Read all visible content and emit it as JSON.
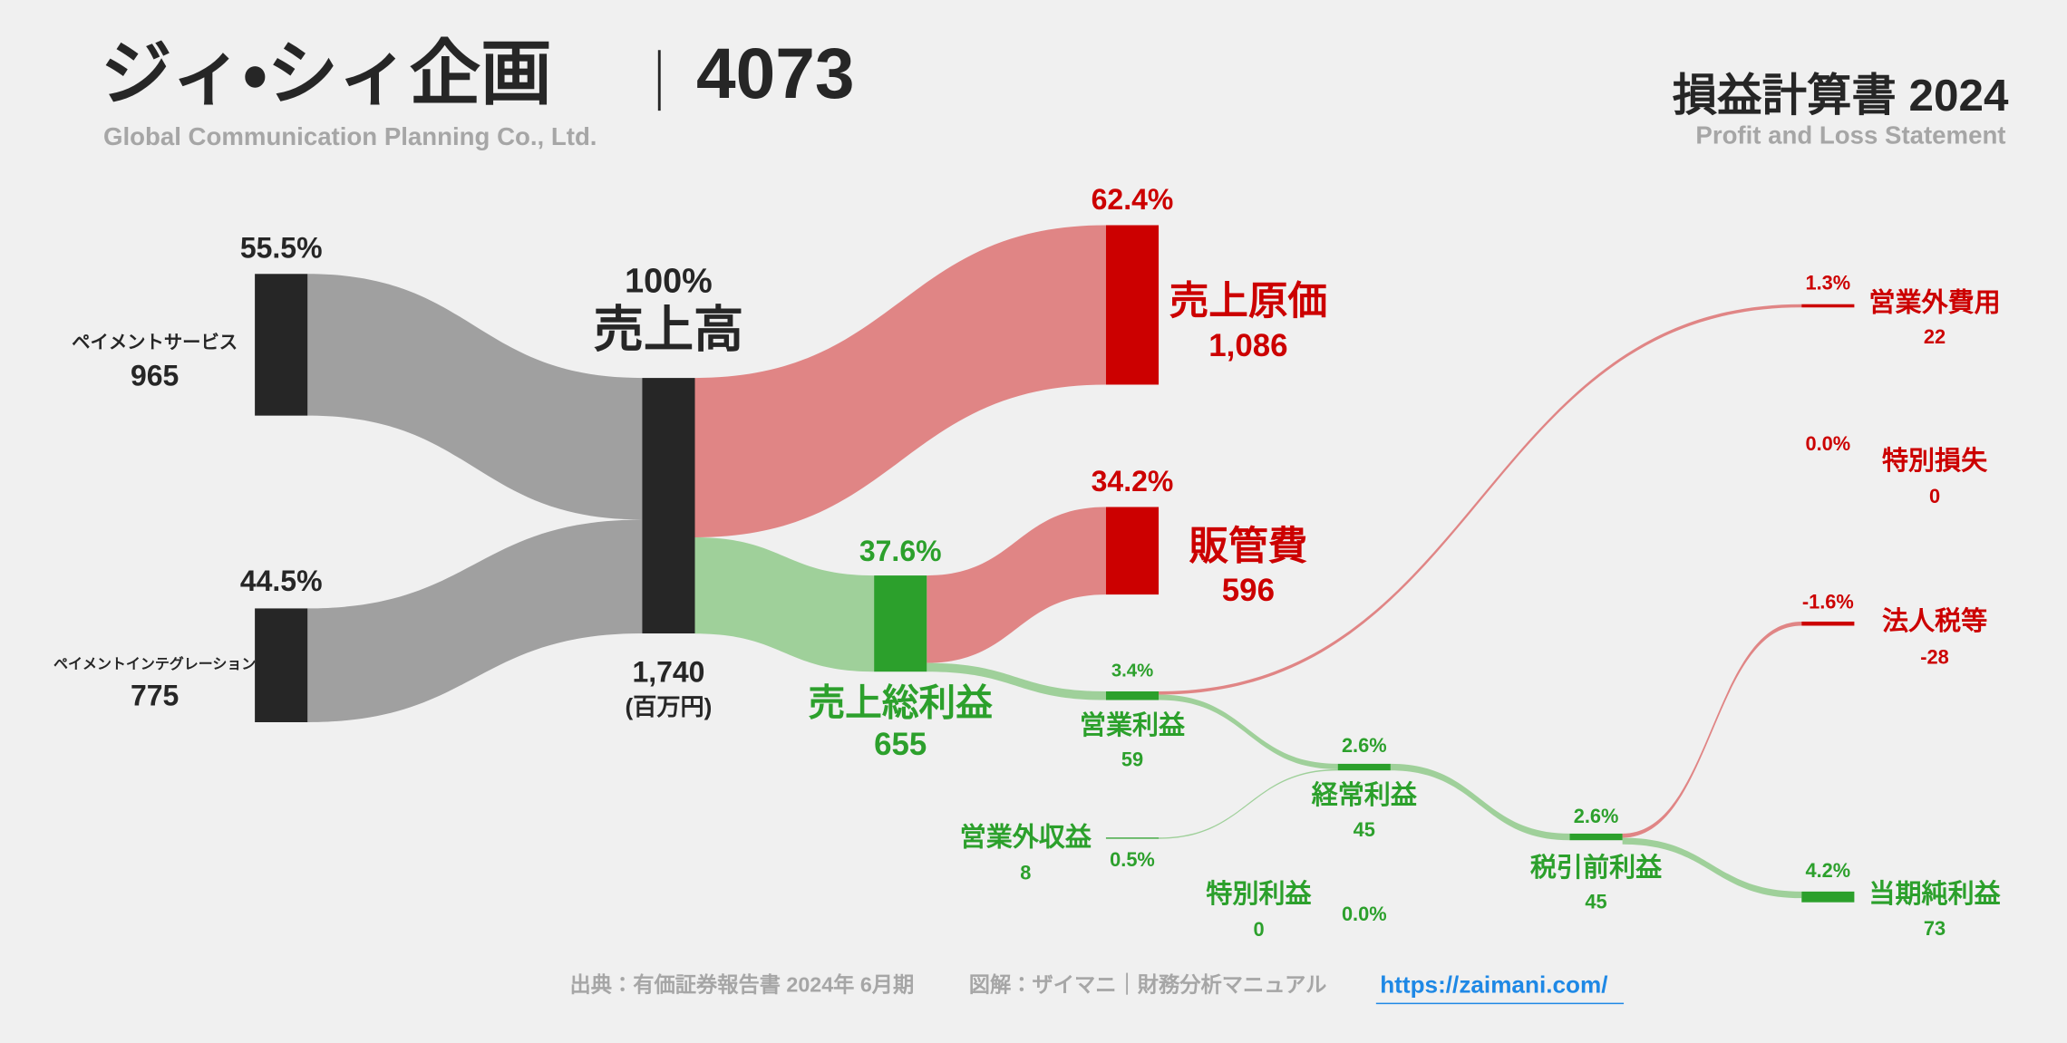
{
  "chart_data": {
    "type": "sankey",
    "title": "ジィ・シィ企画",
    "ticker": "4073",
    "subtitle": "Global Communication Planning Co., Ltd.",
    "statement_title": "損益計算書 2024",
    "statement_subtitle": "Profit and Loss Statement",
    "unit_label": "(百万円)",
    "source": "出典：有価証券報告書 2024年 6月期",
    "credit": "図解：ザイマニ｜財務分析マニュアル",
    "url": "https://zaimani.com/",
    "nodes": [
      {
        "name": "ペイメントサービス",
        "value": 965,
        "share": 55.5,
        "share_label": "55.5%",
        "color": "#262626"
      },
      {
        "name": "ペイメントインテグレーション",
        "value": 775,
        "share": 44.5,
        "share_label": "44.5%",
        "color": "#262626"
      },
      {
        "name": "売上高",
        "value": 1740,
        "value_label": "1,740",
        "share": 100,
        "share_label": "100%",
        "color": "#262626"
      },
      {
        "name": "売上原価",
        "value": 1086,
        "value_label": "1,086",
        "share": 62.4,
        "share_label": "62.4%",
        "color": "#cc0000"
      },
      {
        "name": "売上総利益",
        "value": 655,
        "share": 37.6,
        "share_label": "37.6%",
        "color": "#2ca02c"
      },
      {
        "name": "販管費",
        "value": 596,
        "share": 34.2,
        "share_label": "34.2%",
        "color": "#cc0000"
      },
      {
        "name": "営業利益",
        "value": 59,
        "share": 3.4,
        "share_label": "3.4%",
        "color": "#2ca02c"
      },
      {
        "name": "営業外収益",
        "value": 8,
        "share": 0.5,
        "share_label": "0.5%",
        "color": "#2ca02c"
      },
      {
        "name": "営業外費用",
        "value": 22,
        "share": 1.3,
        "share_label": "1.3%",
        "color": "#cc0000"
      },
      {
        "name": "経常利益",
        "value": 45,
        "share": 2.6,
        "share_label": "2.6%",
        "color": "#2ca02c"
      },
      {
        "name": "特別利益",
        "value": 0,
        "share": 0,
        "share_label": "0.0%",
        "color": "#2ca02c"
      },
      {
        "name": "特別損失",
        "value": 0,
        "share": 0,
        "share_label": "0.0%",
        "color": "#cc0000"
      },
      {
        "name": "税引前利益",
        "value": 45,
        "share": 2.6,
        "share_label": "2.6%",
        "color": "#2ca02c"
      },
      {
        "name": "法人税等",
        "value": -28,
        "share": -1.6,
        "share_label": "-1.6%",
        "color": "#cc0000"
      },
      {
        "name": "当期純利益",
        "value": 73,
        "share": 4.2,
        "share_label": "4.2%",
        "color": "#2ca02c"
      }
    ],
    "links": [
      {
        "source": 0,
        "target": 2,
        "value": 965,
        "color": "#a0a0a0"
      },
      {
        "source": 1,
        "target": 2,
        "value": 775,
        "color": "#a0a0a0"
      },
      {
        "source": 2,
        "target": 3,
        "value": 1086,
        "color": "#e08585"
      },
      {
        "source": 2,
        "target": 4,
        "value": 655,
        "color": "#9fd09a"
      },
      {
        "source": 4,
        "target": 5,
        "value": 596,
        "color": "#e08585"
      },
      {
        "source": 4,
        "target": 6,
        "value": 59,
        "color": "#9fd09a"
      },
      {
        "source": 6,
        "target": 8,
        "value": 22,
        "color": "#e08585"
      },
      {
        "source": 6,
        "target": 9,
        "value": 37,
        "color": "#9fd09a"
      },
      {
        "source": 7,
        "target": 9,
        "value": 8,
        "color": "#9fd09a"
      },
      {
        "source": 9,
        "target": 12,
        "value": 45,
        "color": "#9fd09a"
      },
      {
        "source": 12,
        "target": 13,
        "value": 28,
        "color": "#e08585"
      },
      {
        "source": 12,
        "target": 14,
        "value": 45,
        "color": "#9fd09a"
      }
    ]
  }
}
